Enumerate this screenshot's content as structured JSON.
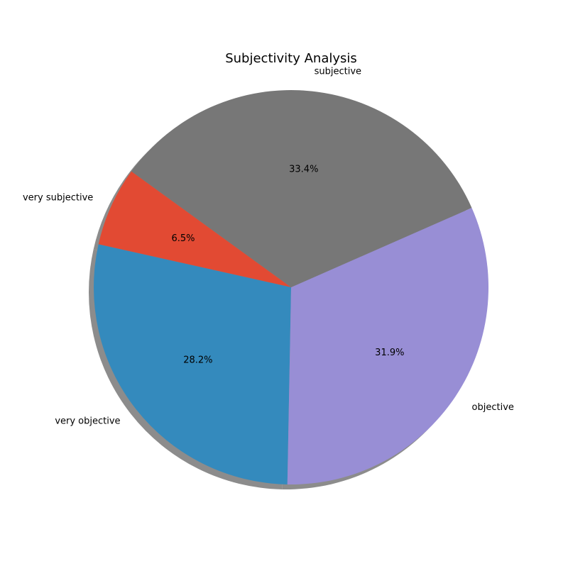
{
  "chart_data": {
    "type": "pie",
    "title": "Subjectivity Analysis",
    "start_angle_deg": 144,
    "direction": "counterclockwise",
    "shadow": true,
    "slices": [
      {
        "label": "very subjective",
        "value": 6.5,
        "pct_label": "6.5%",
        "color": "#E24A33"
      },
      {
        "label": "very objective",
        "value": 28.2,
        "pct_label": "28.2%",
        "color": "#348ABD"
      },
      {
        "label": "objective",
        "value": 31.9,
        "pct_label": "31.9%",
        "color": "#988ED5"
      },
      {
        "label": "subjective",
        "value": 33.4,
        "pct_label": "33.4%",
        "color": "#777777"
      }
    ]
  }
}
